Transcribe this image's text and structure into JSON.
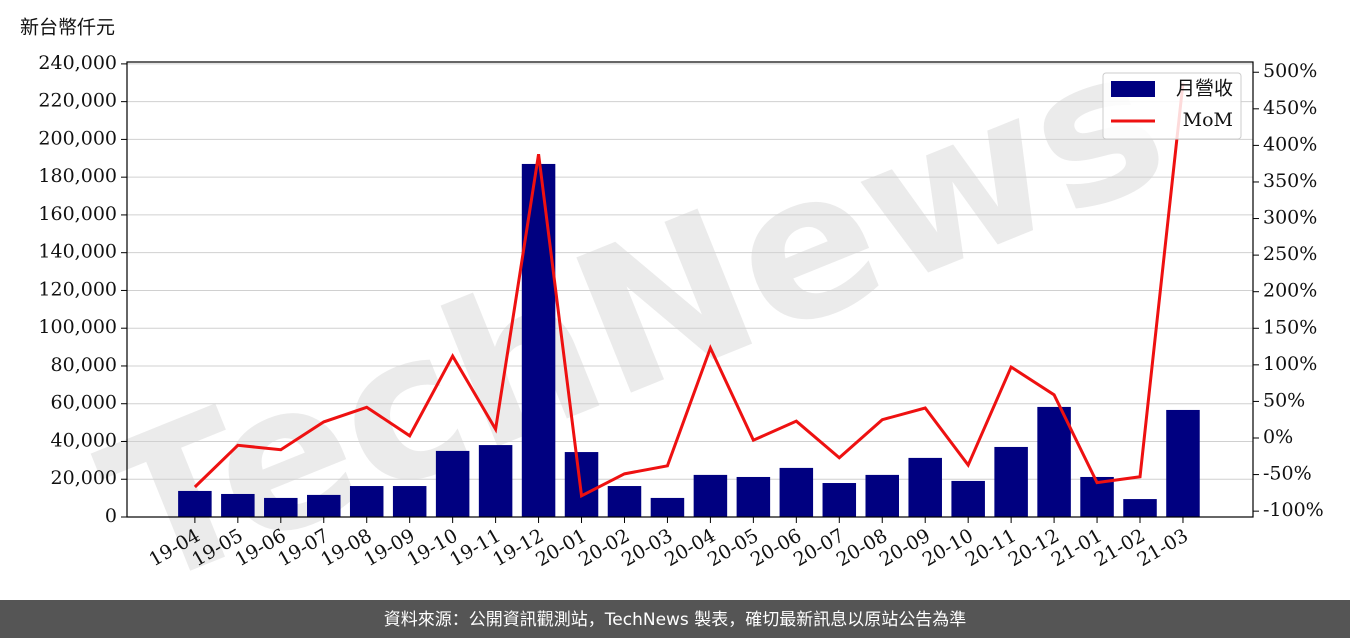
{
  "chart_data": {
    "type": "bar",
    "y_label": "新台幣仟元",
    "watermark": "TechNews",
    "footer": "資料來源：公開資訊觀測站，TechNews 製表，確切最新訊息以原站公告為準",
    "categories": [
      "19-04",
      "19-05",
      "19-06",
      "19-07",
      "19-08",
      "19-09",
      "19-10",
      "19-11",
      "19-12",
      "20-01",
      "20-02",
      "20-03",
      "20-04",
      "20-05",
      "20-06",
      "20-07",
      "20-08",
      "20-09",
      "20-10",
      "20-11",
      "20-12",
      "21-01",
      "21-02",
      "21-03"
    ],
    "series": [
      {
        "name": "月營收",
        "type": "bar",
        "color": "#000080",
        "values": [
          13800,
          12200,
          10100,
          11700,
          16400,
          16400,
          35000,
          38100,
          187000,
          34400,
          16400,
          10100,
          22300,
          21200,
          26000,
          18000,
          22300,
          31300,
          19100,
          37100,
          58300,
          21200,
          9500,
          56700
        ]
      },
      {
        "name": "MoM",
        "type": "line",
        "axis": "y2",
        "color": "#ee1111",
        "values": [
          -67,
          -10,
          -16,
          22,
          42,
          3,
          112,
          12,
          388,
          -79,
          -49,
          -38,
          123,
          -3,
          23,
          -27,
          25,
          41,
          -37,
          97,
          59,
          -61,
          -53,
          485
        ]
      }
    ],
    "ylim": [
      0,
      241000
    ],
    "yticks": [
      0,
      {
        "value": 20000,
        "label": "20,000"
      },
      {
        "value": 40000,
        "label": "40,000"
      },
      {
        "value": 60000,
        "label": "60,000"
      },
      {
        "value": 80000,
        "label": "80,000"
      },
      {
        "value": 100000,
        "label": "100,000"
      },
      {
        "value": 120000,
        "label": "120,000"
      },
      {
        "value": 140000,
        "label": "140,000"
      },
      {
        "value": 160000,
        "label": "160,000"
      },
      {
        "value": 180000,
        "label": "180,000"
      },
      {
        "value": 200000,
        "label": "200,000"
      },
      {
        "value": 220000,
        "label": "220,000"
      },
      {
        "value": 240000,
        "label": "240,000"
      }
    ],
    "y2lim": [
      -108,
      514
    ],
    "y2ticks": [
      {
        "value": -100,
        "label": "-100%"
      },
      {
        "value": -50,
        "label": "-50%"
      },
      {
        "value": 0,
        "label": "0%"
      },
      {
        "value": 50,
        "label": "50%"
      },
      {
        "value": 100,
        "label": "100%"
      },
      {
        "value": 150,
        "label": "150%"
      },
      {
        "value": 200,
        "label": "200%"
      },
      {
        "value": 250,
        "label": "250%"
      },
      {
        "value": 300,
        "label": "300%"
      },
      {
        "value": 350,
        "label": "350%"
      },
      {
        "value": 400,
        "label": "400%"
      },
      {
        "value": 450,
        "label": "450%"
      },
      {
        "value": 500,
        "label": "500%"
      }
    ],
    "grid": true,
    "legend": "upper right"
  }
}
